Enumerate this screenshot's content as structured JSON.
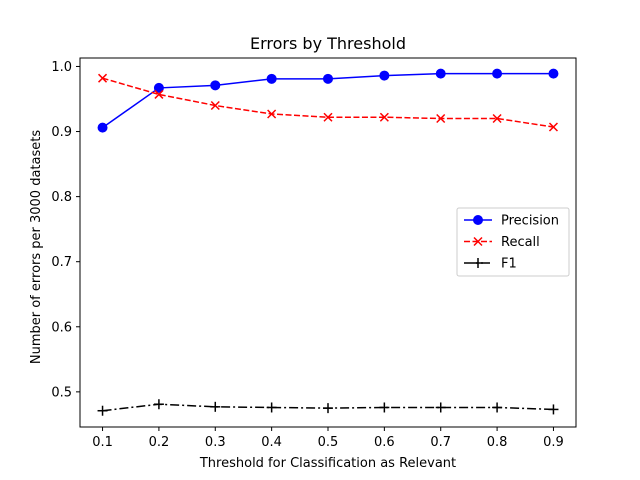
{
  "chart_data": {
    "type": "line",
    "title": "Errors by Threshold",
    "xlabel": "Threshold for Classification as Relevant",
    "ylabel": "Number of errors per 3000 datasets",
    "x": [
      0.1,
      0.2,
      0.3,
      0.4,
      0.5,
      0.6,
      0.7,
      0.8,
      0.9
    ],
    "xlim": [
      0.06,
      0.94
    ],
    "ylim": [
      0.446,
      1.013
    ],
    "xticks": [
      0.1,
      0.2,
      0.3,
      0.4,
      0.5,
      0.6,
      0.7,
      0.8,
      0.9
    ],
    "xtick_labels": [
      "0.1",
      "0.2",
      "0.3",
      "0.4",
      "0.5",
      "0.6",
      "0.7",
      "0.8",
      "0.9"
    ],
    "yticks": [
      0.5,
      0.6,
      0.7,
      0.8,
      0.9,
      1.0
    ],
    "ytick_labels": [
      "0.5",
      "0.6",
      "0.7",
      "0.8",
      "0.9",
      "1.0"
    ],
    "grid": false,
    "legend_position": "center-right",
    "series": [
      {
        "name": "Precision",
        "values": [
          0.906,
          0.967,
          0.971,
          0.981,
          0.981,
          0.986,
          0.989,
          0.989,
          0.989
        ],
        "color": "#0000ff",
        "linestyle": "solid",
        "marker": "circle"
      },
      {
        "name": "Recall",
        "values": [
          0.982,
          0.957,
          0.94,
          0.927,
          0.922,
          0.922,
          0.92,
          0.92,
          0.907
        ],
        "color": "#ff0000",
        "linestyle": "dashed",
        "marker": "x"
      },
      {
        "name": "F1",
        "values": [
          0.471,
          0.481,
          0.477,
          0.476,
          0.475,
          0.476,
          0.476,
          0.476,
          0.473
        ],
        "color": "#000000",
        "linestyle": "dashdot",
        "marker": "plus"
      }
    ]
  }
}
